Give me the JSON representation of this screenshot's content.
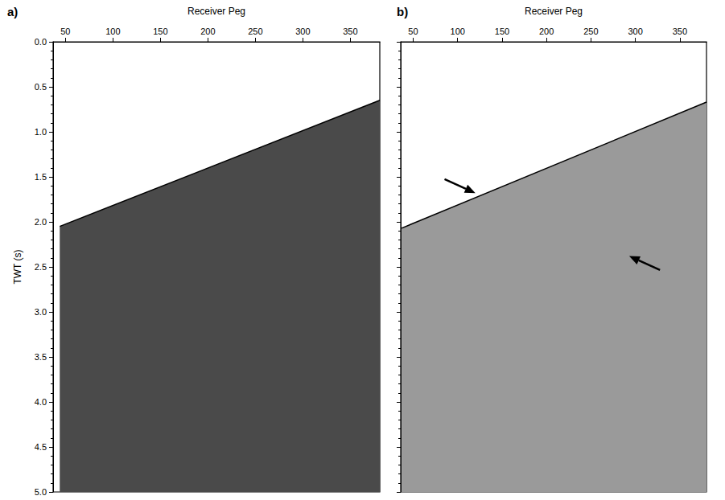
{
  "chart_data": [
    {
      "type": "line",
      "title": "a)",
      "x_label": "Receiver Peg",
      "y_label": "TWT (s)",
      "x": [
        44,
        381
      ],
      "values": [
        2.05,
        0.65
      ],
      "color": "#4a4a4a",
      "xlim": [
        37,
        381
      ],
      "ylim": [
        0,
        5
      ],
      "xticks": [
        50,
        100,
        150,
        200,
        250,
        300,
        350
      ],
      "yticks": [
        {
          "value": 0,
          "label": "0.0"
        },
        0.5,
        {
          "value": 1,
          "label": "1.0"
        },
        1.5,
        {
          "value": 2,
          "label": "2.0"
        },
        2.5,
        {
          "value": 3,
          "label": "3.0"
        },
        3.5,
        {
          "value": 4,
          "label": "4.0"
        },
        4.5,
        {
          "value": 5,
          "label": "5.0"
        }
      ]
    },
    {
      "type": "line",
      "title": "b)",
      "x_label": "Receiver Peg",
      "x": [
        37,
        380
      ],
      "values": [
        2.07,
        0.67
      ],
      "color": "#9a9a9a",
      "xlim": [
        36,
        380
      ],
      "ylim": [
        0,
        5
      ],
      "xticks": [
        50,
        100,
        150,
        200,
        250,
        300,
        350
      ],
      "yticks": [
        {
          "value": 0,
          "label": "0.0"
        },
        0.5,
        {
          "value": 1,
          "label": "1.0"
        },
        1.5,
        {
          "value": 2,
          "label": "2.0"
        },
        2.5,
        {
          "value": 3,
          "label": "3.0"
        },
        3.5,
        {
          "value": 4,
          "label": "4.0"
        },
        4.5,
        {
          "value": 5,
          "label": "5.0"
        }
      ],
      "tick_labels": "x",
      "arrows": [
        {
          "x": 120,
          "y": 1.68
        },
        {
          "x": 293,
          "y": 2.38
        }
      ]
    }
  ]
}
